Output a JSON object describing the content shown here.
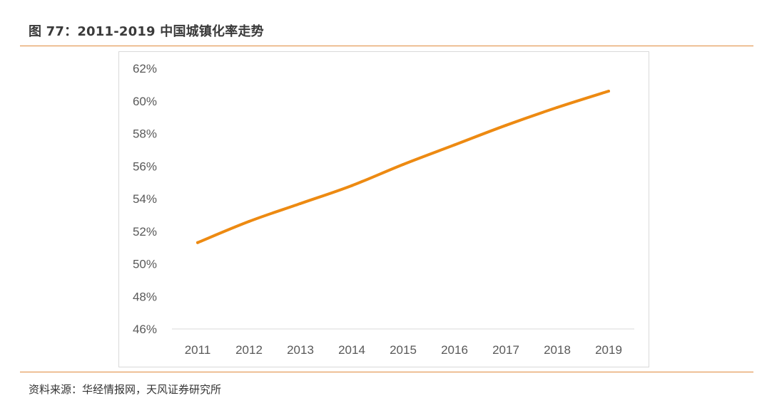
{
  "figure": {
    "title": "图 77：2011-2019 中国城镇化率走势",
    "source": "资料来源：华经情报网，天风证券研究所"
  },
  "chart_data": {
    "type": "line",
    "categories": [
      "2011",
      "2012",
      "2013",
      "2014",
      "2015",
      "2016",
      "2017",
      "2018",
      "2019"
    ],
    "series": [
      {
        "values": [
          51.3,
          52.6,
          53.7,
          54.8,
          56.1,
          57.3,
          58.5,
          59.6,
          60.6
        ],
        "color": "#ED8A12"
      }
    ],
    "xlabel": "",
    "ylabel": "",
    "ylim": [
      46,
      62
    ],
    "yticks": [
      "46%",
      "48%",
      "50%",
      "52%",
      "54%",
      "56%",
      "58%",
      "60%",
      "62%"
    ],
    "grid": false,
    "legend": "none"
  }
}
